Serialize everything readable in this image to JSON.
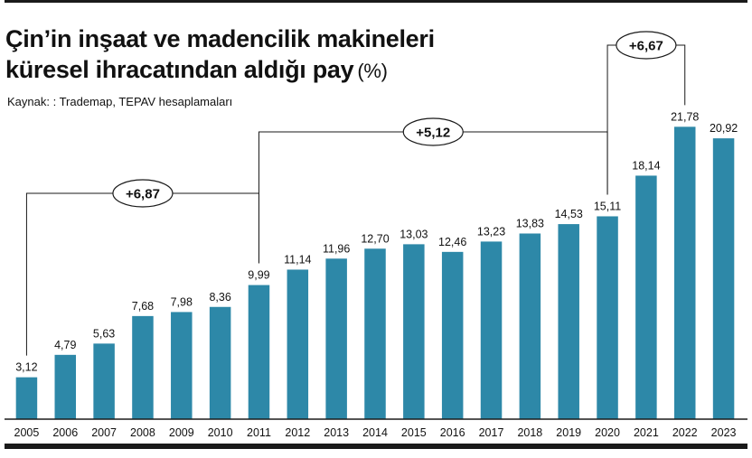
{
  "title_line1": "Çin’in inşaat ve madencilik makineleri",
  "title_line2": "küresel ihracatından aldığı pay",
  "title_unit": "(%)",
  "source": "Kaynak: : Trademap, TEPAV hesaplamaları",
  "colors": {
    "bar": "#2d88a8",
    "text": "#111111",
    "axis": "#1a1a1a"
  },
  "chart_data": {
    "type": "bar",
    "title": "Çin’in inşaat ve madencilik makineleri küresel ihracatından aldığı pay (%)",
    "xlabel": "",
    "ylabel": "",
    "ylim": [
      0,
      25
    ],
    "grid": false,
    "categories": [
      "2005",
      "2006",
      "2007",
      "2008",
      "2009",
      "2010",
      "2011",
      "2012",
      "2013",
      "2014",
      "2015",
      "2016",
      "2017",
      "2018",
      "2019",
      "2020",
      "2021",
      "2022",
      "2023"
    ],
    "values": [
      3.12,
      4.79,
      5.63,
      7.68,
      7.98,
      8.36,
      9.99,
      11.14,
      11.96,
      12.7,
      13.03,
      12.46,
      13.23,
      13.83,
      14.53,
      15.11,
      18.14,
      21.78,
      20.92
    ],
    "value_labels": [
      "3,12",
      "4,79",
      "5,63",
      "7,68",
      "7,98",
      "8,36",
      "9,99",
      "11,14",
      "11,96",
      "12,70",
      "13,03",
      "12,46",
      "13,23",
      "13,83",
      "14,53",
      "15,11",
      "18,14",
      "21,78",
      "20,92"
    ],
    "annotations": [
      {
        "label": "+6,87",
        "from": "2005",
        "to": "2011"
      },
      {
        "label": "+5,12",
        "from": "2011",
        "to": "2020"
      },
      {
        "label": "+6,67",
        "from": "2020",
        "to": "2022"
      }
    ]
  }
}
